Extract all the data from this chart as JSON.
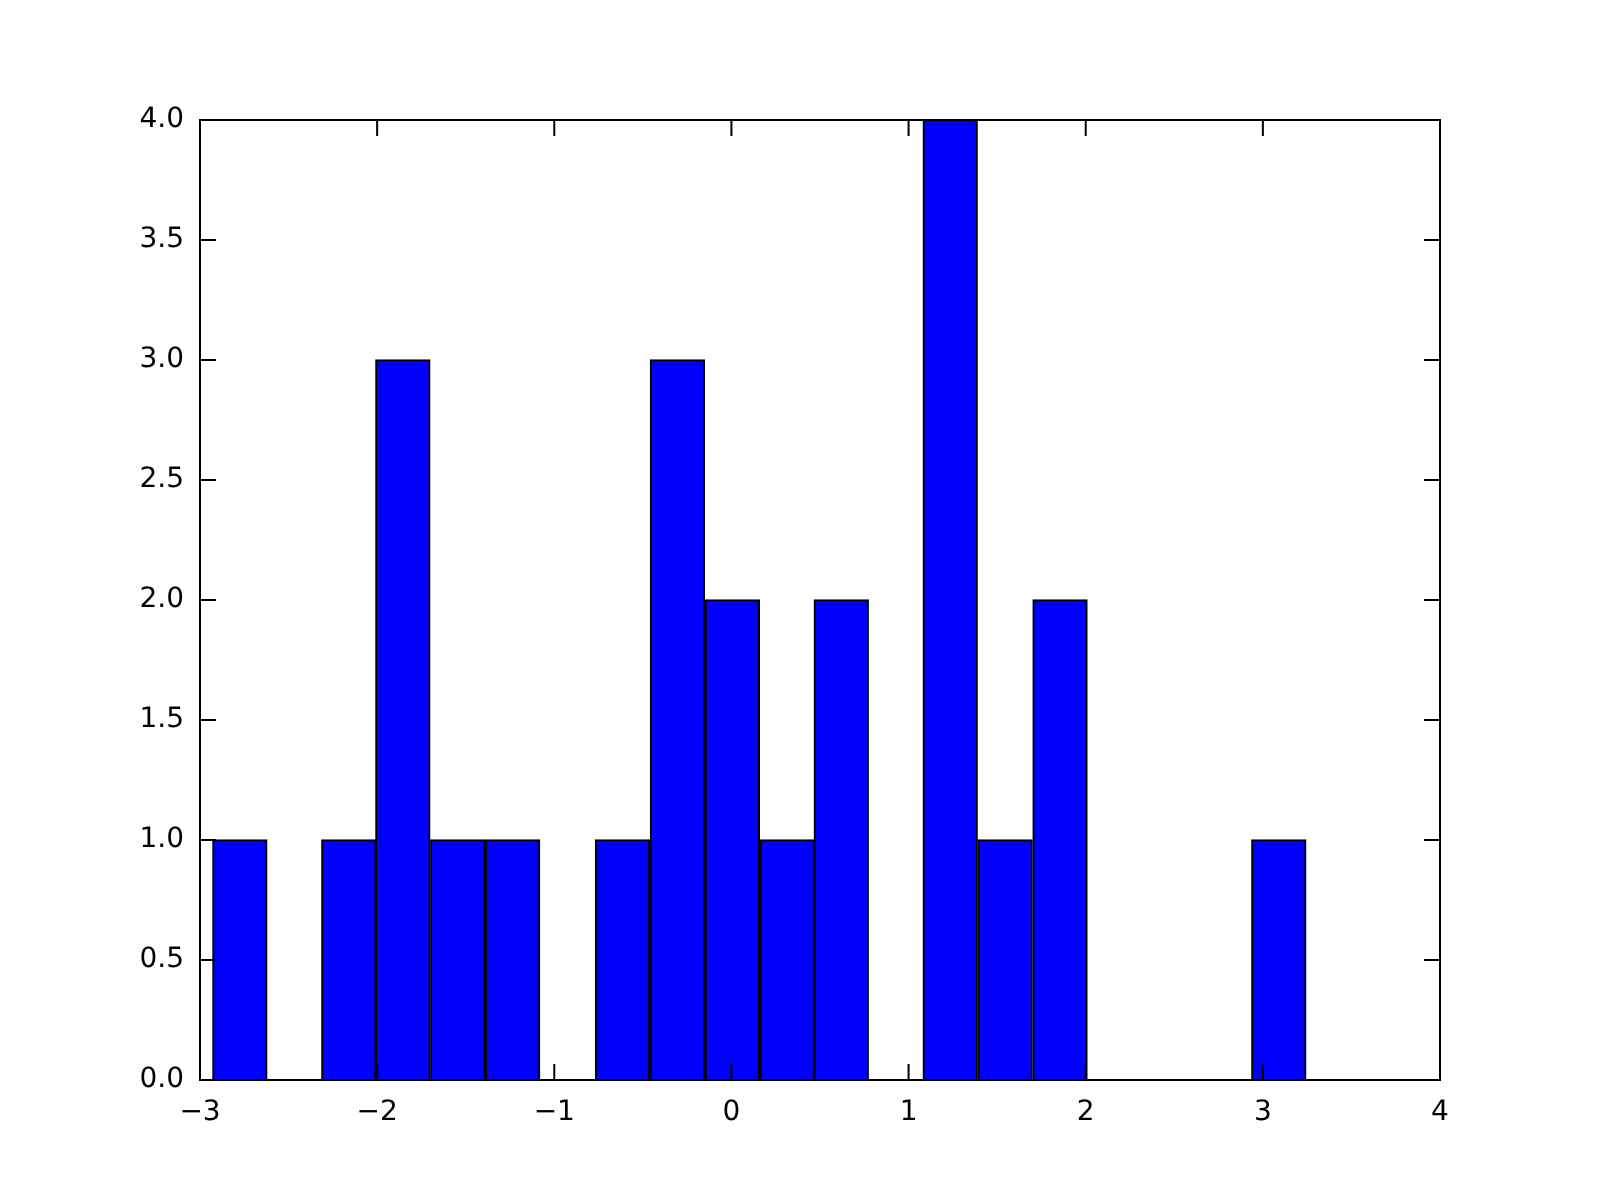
{
  "chart_data": {
    "type": "histogram",
    "bins": [
      -2.93,
      -2.62,
      -2.31,
      -2.01,
      -1.7,
      -1.39,
      -1.08,
      -0.77,
      -0.46,
      -0.15,
      0.16,
      0.47,
      0.77,
      1.08,
      1.39,
      1.7,
      2.01,
      2.32,
      2.63,
      2.94,
      3.24
    ],
    "values": [
      1,
      0,
      1,
      3,
      1,
      1,
      0,
      1,
      3,
      2,
      1,
      2,
      0,
      4,
      1,
      2,
      0,
      0,
      0,
      1
    ],
    "color": "#0000ff",
    "xlim": [
      -3,
      4
    ],
    "xticks": [
      {
        "value": -3,
        "label": "−3"
      },
      {
        "value": -2,
        "label": "−2"
      },
      {
        "value": -1,
        "label": "−1"
      },
      0,
      1,
      2,
      3,
      4
    ],
    "ylim": [
      0,
      4
    ],
    "yticks": [
      {
        "value": 0,
        "label": "0.0"
      },
      {
        "value": 0.5,
        "label": "0.5"
      },
      {
        "value": 1,
        "label": "1.0"
      },
      {
        "value": 1.5,
        "label": "1.5"
      },
      {
        "value": 2,
        "label": "2.0"
      },
      {
        "value": 2.5,
        "label": "2.5"
      },
      {
        "value": 3,
        "label": "3.0"
      },
      {
        "value": 3.5,
        "label": "3.5"
      },
      {
        "value": 4,
        "label": "4.0"
      }
    ],
    "grid": false
  }
}
